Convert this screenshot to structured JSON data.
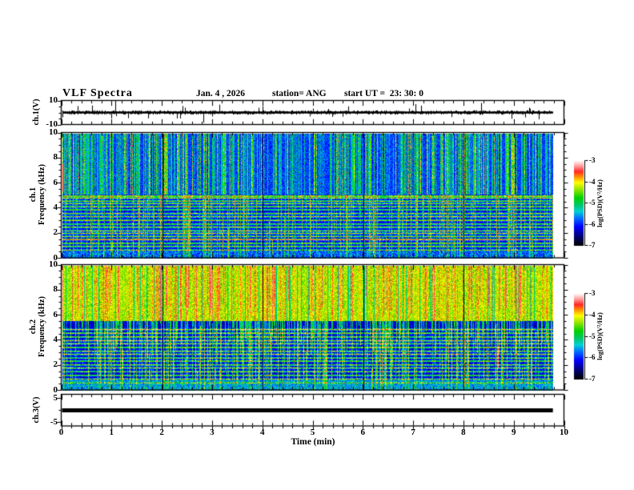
{
  "header": {
    "title": "VLF Spectra",
    "date_label": "Jan. 4 , 2026",
    "station_label": "station= ANG",
    "start_ut_label": "start UT =  23: 30: 0"
  },
  "axes": {
    "time": {
      "label": "Time (min)",
      "min": 0,
      "max": 10,
      "major_tick_labels": [
        "0",
        "1",
        "2",
        "3",
        "4",
        "5",
        "6",
        "7",
        "8",
        "9",
        "10"
      ],
      "minor_tick_step_min": 0.2
    },
    "ch1_wave": {
      "panel_label": "ch.1(V)",
      "ymin": -10,
      "ymax": 10,
      "ytick_labels": [
        "10",
        "-10"
      ],
      "ytick_values": [
        10,
        -10
      ]
    },
    "ch1_spec": {
      "panel_label_line1": "ch.1",
      "panel_label_line2": "Frequency (kHz)",
      "ymin": 0,
      "ymax": 10,
      "ytick_labels": [
        "10",
        "8",
        "6",
        "4",
        "2",
        "0"
      ],
      "ytick_values": [
        10,
        8,
        6,
        4,
        2,
        0
      ]
    },
    "ch2_spec": {
      "panel_label_line1": "ch.2",
      "panel_label_line2": "Frequency (kHz)",
      "ymin": 0,
      "ymax": 10,
      "ytick_labels": [
        "10",
        "8",
        "6",
        "4",
        "2",
        "0"
      ],
      "ytick_values": [
        10,
        8,
        6,
        4,
        2,
        0
      ]
    },
    "ch3_wave": {
      "panel_label": "ch.3(V)",
      "ymin": -6.5,
      "ymax": 6.5,
      "ytick_labels": [
        "5",
        "-5"
      ],
      "ytick_values": [
        5,
        -5
      ]
    },
    "colorbar": {
      "unit_label": "log(PSD)(V²/Hz)",
      "vmax": -3,
      "vmin": -7,
      "tick_labels": [
        "-3",
        "-4",
        "-5",
        "-6",
        "-7"
      ],
      "tick_values": [
        -3,
        -4,
        -5,
        -6,
        -7
      ]
    }
  },
  "colors": {
    "background": "#ffffff",
    "axis_color": "#000000",
    "colormap_stops": [
      [
        0.0,
        0,
        0,
        0
      ],
      [
        0.1,
        0,
        0,
        110
      ],
      [
        0.22,
        0,
        0,
        255
      ],
      [
        0.32,
        0,
        110,
        255
      ],
      [
        0.4,
        0,
        210,
        210
      ],
      [
        0.48,
        0,
        200,
        100
      ],
      [
        0.56,
        0,
        210,
        0
      ],
      [
        0.66,
        150,
        230,
        0
      ],
      [
        0.74,
        255,
        255,
        0
      ],
      [
        0.81,
        255,
        140,
        0
      ],
      [
        0.87,
        255,
        40,
        40
      ],
      [
        0.93,
        255,
        150,
        150
      ],
      [
        1.0,
        255,
        255,
        255
      ]
    ]
  },
  "chart_data": [
    {
      "panel": "ch1_waveform",
      "type": "line",
      "label": "ch.1(V)",
      "xlim_min": [
        0,
        10
      ],
      "ylim_v": [
        -10,
        10
      ],
      "baseline_v": 0,
      "noise_amp_v": 1.5,
      "data_end_min": 9.78,
      "spikes": [
        {
          "t_min": 0.03,
          "amp_v": -4
        },
        {
          "t_min": 1.07,
          "amp_v": 10
        },
        {
          "t_min": 1.09,
          "amp_v": -3
        },
        {
          "t_min": 2.3,
          "amp_v": -5
        },
        {
          "t_min": 2.82,
          "amp_v": -8.5
        },
        {
          "t_min": 3.92,
          "amp_v": 4
        },
        {
          "t_min": 5.6,
          "amp_v": -3.5
        },
        {
          "t_min": 7.05,
          "amp_v": 7
        },
        {
          "t_min": 8.35,
          "amp_v": 8
        },
        {
          "t_min": 9.3,
          "amp_v": 4
        }
      ]
    },
    {
      "panel": "ch1_spectrogram",
      "type": "heatmap",
      "channel": 1,
      "ylabel": "Frequency (kHz)",
      "flim_khz": [
        0,
        10
      ],
      "xlim_min": [
        0,
        10
      ],
      "psd_log_range": [
        -7,
        -3
      ],
      "data_end_min": 9.78,
      "active_above_khz": 5.1,
      "upper_base": 0.2,
      "lower_base": 0.13,
      "streak_density": 0.55,
      "low_streak_density": 0.3,
      "bottom_band_khz": 0.75,
      "bottom_band_v": 0.2,
      "gridline_minutes": [
        2,
        4,
        6,
        8
      ],
      "bands_khz": [
        [
          5.0,
          0.56
        ],
        [
          4.85,
          0.5
        ],
        [
          4.6,
          0.44
        ],
        [
          4.4,
          0.42
        ],
        [
          4.15,
          0.46
        ],
        [
          3.9,
          0.4
        ],
        [
          3.6,
          0.46
        ],
        [
          3.35,
          0.44
        ],
        [
          3.05,
          0.52
        ],
        [
          2.75,
          0.4
        ],
        [
          2.5,
          0.44
        ],
        [
          2.2,
          0.42
        ],
        [
          2.0,
          0.46
        ],
        [
          1.75,
          0.42
        ],
        [
          1.5,
          0.8
        ],
        [
          1.2,
          0.46
        ],
        [
          0.95,
          0.44
        ],
        [
          0.65,
          0.4
        ]
      ]
    },
    {
      "panel": "ch2_spectrogram",
      "type": "heatmap",
      "channel": 2,
      "ylabel": "Frequency (kHz)",
      "flim_khz": [
        0,
        10
      ],
      "xlim_min": [
        0,
        10
      ],
      "psd_log_range": [
        -7,
        -3
      ],
      "data_end_min": 9.78,
      "active_above_khz": 5.6,
      "upper_base": 0.6,
      "lower_base": 0.1,
      "streak_density": 0.5,
      "low_streak_density": 0.32,
      "red_streak_prob": 0.09,
      "bottom_band_khz": 0.8,
      "bottom_band_v": 0.26,
      "gridline_minutes": [
        2,
        4,
        6,
        8
      ],
      "red_line": {
        "t_min": 8.68,
        "f_lo_khz": 1.8,
        "f_hi_khz": 3.6
      },
      "bands_khz": [
        [
          4.9,
          0.5
        ],
        [
          4.6,
          0.46
        ],
        [
          4.3,
          0.44
        ],
        [
          4.0,
          0.52
        ],
        [
          3.75,
          0.44
        ],
        [
          3.45,
          0.48
        ],
        [
          3.15,
          0.44
        ],
        [
          2.9,
          0.52
        ],
        [
          2.6,
          0.44
        ],
        [
          2.35,
          0.46
        ],
        [
          2.05,
          0.44
        ],
        [
          1.8,
          0.46
        ],
        [
          1.5,
          0.44
        ],
        [
          1.2,
          0.42
        ],
        [
          0.9,
          0.46
        ],
        [
          0.6,
          0.44
        ]
      ]
    },
    {
      "panel": "ch3_waveform",
      "type": "line",
      "label": "ch.3(V)",
      "xlim_min": [
        0,
        10
      ],
      "ylim_v": [
        -6.5,
        6.5
      ],
      "constant_v": 0,
      "line_start_min": 0,
      "line_end_min": 9.78
    }
  ]
}
